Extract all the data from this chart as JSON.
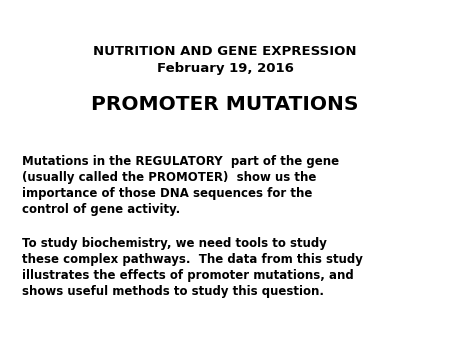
{
  "background_color": "#ffffff",
  "line1": "NUTRITION AND GENE EXPRESSION",
  "line2": "February 19, 2016",
  "heading": "PROMOTER MUTATIONS",
  "para1_line1": "Mutations in the REGULATORY  part of the gene",
  "para1_line2": "(usually called the PROMOTER)  show us the",
  "para1_line3": "importance of those DNA sequences for the",
  "para1_line4": "control of gene activity.",
  "para2_line1": "To study biochemistry, we need tools to study",
  "para2_line2": "these complex pathways.  The data from this study",
  "para2_line3": "illustrates the effects of promoter mutations, and",
  "para2_line4": "shows useful methods to study this question.",
  "title_fontsize": 9.5,
  "heading_fontsize": 14.5,
  "body_fontsize": 8.5,
  "fig_width": 4.5,
  "fig_height": 3.38,
  "dpi": 100
}
